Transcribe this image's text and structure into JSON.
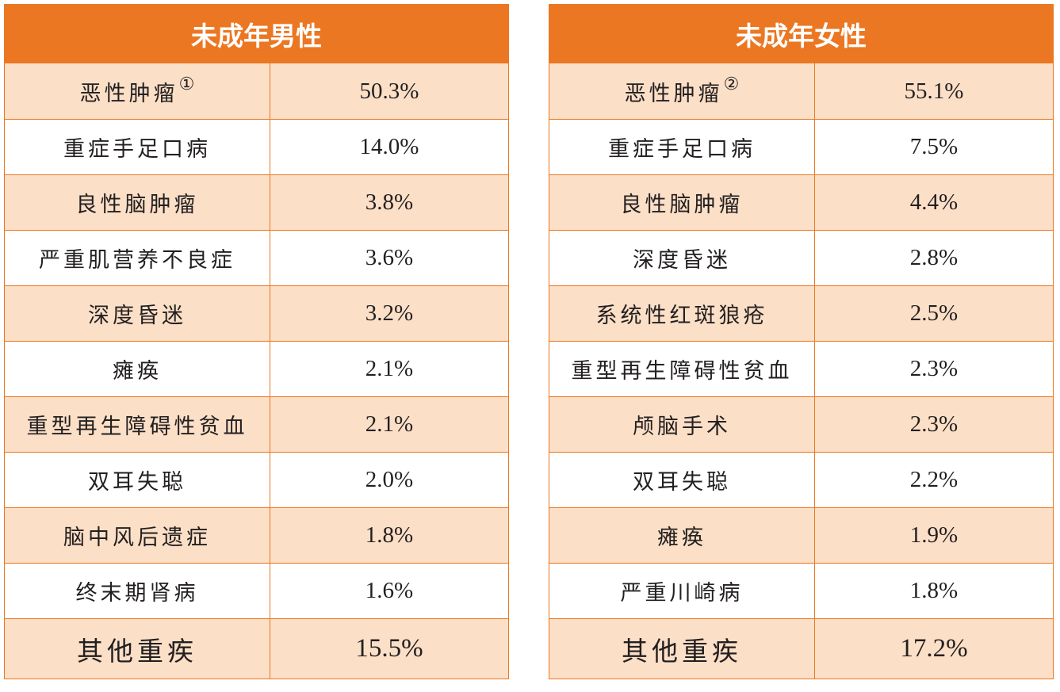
{
  "tables": [
    {
      "id": "male",
      "header": "未成年男性",
      "rows": [
        {
          "name": "恶性肿瘤",
          "note": "①",
          "value": "50.3%"
        },
        {
          "name": "重症手足口病",
          "note": "",
          "value": "14.0%"
        },
        {
          "name": "良性脑肿瘤",
          "note": "",
          "value": "3.8%"
        },
        {
          "name": "严重肌营养不良症",
          "note": "",
          "value": "3.6%"
        },
        {
          "name": "深度昏迷",
          "note": "",
          "value": "3.2%"
        },
        {
          "name": "瘫痪",
          "note": "",
          "value": "2.1%"
        },
        {
          "name": "重型再生障碍性贫血",
          "note": "",
          "value": "2.1%"
        },
        {
          "name": "双耳失聪",
          "note": "",
          "value": "2.0%"
        },
        {
          "name": "脑中风后遗症",
          "note": "",
          "value": "1.8%"
        },
        {
          "name": "终末期肾病",
          "note": "",
          "value": "1.6%"
        },
        {
          "name": "其他重疾",
          "note": "",
          "value": "15.5%"
        }
      ]
    },
    {
      "id": "female",
      "header": "未成年女性",
      "rows": [
        {
          "name": "恶性肿瘤",
          "note": "②",
          "value": "55.1%"
        },
        {
          "name": "重症手足口病",
          "note": "",
          "value": "7.5%"
        },
        {
          "name": "良性脑肿瘤",
          "note": "",
          "value": "4.4%"
        },
        {
          "name": "深度昏迷",
          "note": "",
          "value": "2.8%"
        },
        {
          "name": "系统性红斑狼疮",
          "note": "",
          "value": "2.5%"
        },
        {
          "name": "重型再生障碍性贫血",
          "note": "",
          "value": "2.3%"
        },
        {
          "name": "颅脑手术",
          "note": "",
          "value": "2.3%"
        },
        {
          "name": "双耳失聪",
          "note": "",
          "value": "2.2%"
        },
        {
          "name": "瘫痪",
          "note": "",
          "value": "1.9%"
        },
        {
          "name": "严重川崎病",
          "note": "",
          "value": "1.8%"
        },
        {
          "name": "其他重疾",
          "note": "",
          "value": "17.2%"
        }
      ]
    }
  ],
  "colors": {
    "header_bg": "#eb7722",
    "header_text": "#ffffff",
    "row_alt_bg": "#fbdfc7",
    "row_bg": "#ffffff",
    "border": "#eb7722",
    "text": "#231f20"
  }
}
